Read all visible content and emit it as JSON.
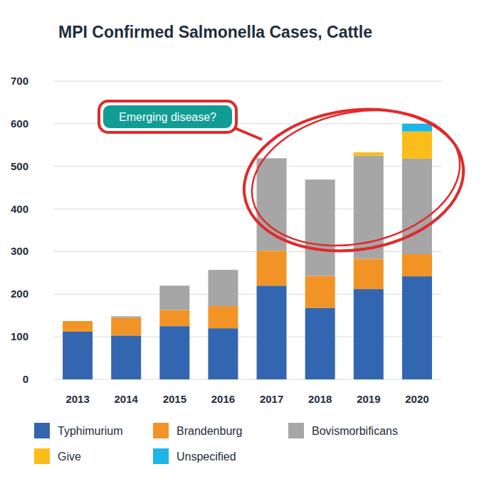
{
  "chart_data": {
    "type": "bar",
    "title": "MPI Confirmed Salmonella Cases, Cattle",
    "annotation": "Emerging disease?",
    "categories": [
      "2013",
      "2014",
      "2015",
      "2016",
      "2017",
      "2018",
      "2019",
      "2020"
    ],
    "series": [
      {
        "name": "Typhimurium",
        "color": "#3366b0",
        "values": [
          112,
          103,
          125,
          120,
          220,
          168,
          212,
          242
        ]
      },
      {
        "name": "Brandenburg",
        "color": "#f29425",
        "values": [
          25,
          42,
          38,
          52,
          82,
          75,
          71,
          52
        ]
      },
      {
        "name": "Bovismorbificans",
        "color": "#a6a6a6",
        "values": [
          0,
          3,
          57,
          85,
          217,
          226,
          242,
          224
        ]
      },
      {
        "name": "Give",
        "color": "#fbbd1a",
        "values": [
          0,
          0,
          0,
          0,
          0,
          0,
          8,
          64
        ]
      },
      {
        "name": "Unspecified",
        "color": "#1db5e8",
        "values": [
          0,
          0,
          0,
          0,
          0,
          0,
          0,
          18
        ]
      }
    ],
    "ylim": [
      0,
      700
    ],
    "yticks": [
      0,
      100,
      200,
      300,
      400,
      500,
      600,
      700
    ],
    "grid": true,
    "stacked": true,
    "legend": "bottom"
  }
}
